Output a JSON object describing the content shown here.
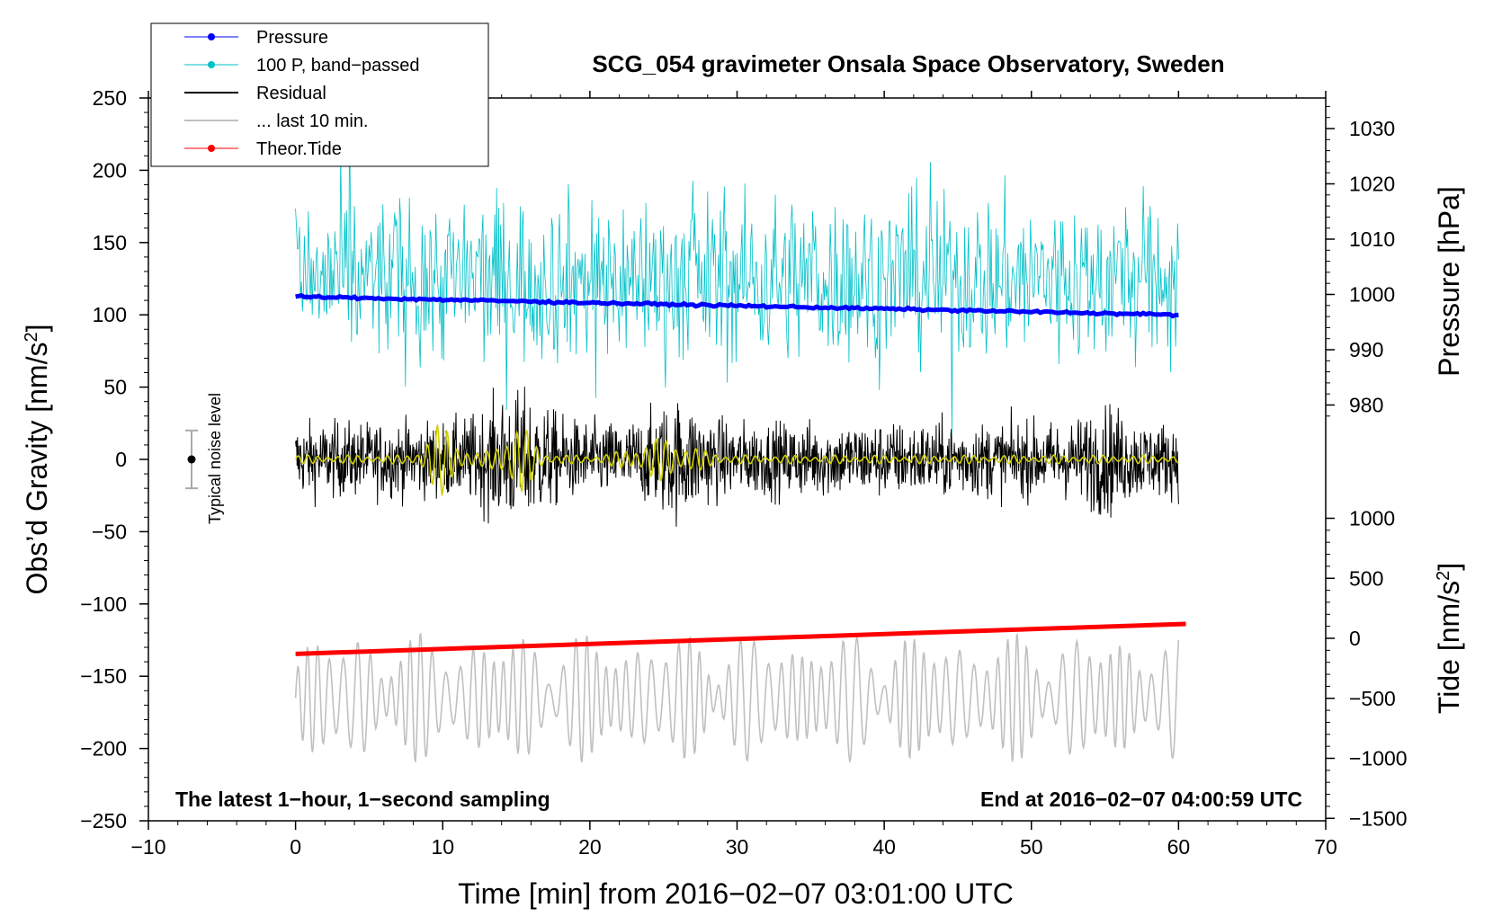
{
  "chart_data": {
    "type": "line",
    "title": "SCG_054 gravimeter Onsala Space Observatory, Sweden",
    "xlabel": "Time [min] from 2016−02−07 03:01:00 UTC",
    "ylabel_left": "Obs’d Gravity [nm/s",
    "ylabel_left_sup": "2",
    "ylabel_left_close": "]",
    "ylabel_right_top": "Pressure [hPa]",
    "ylabel_right_bottom": "Tide [nm/s",
    "ylabel_right_bottom_sup": "2",
    "ylabel_right_bottom_close": "]",
    "xlim": [
      -10,
      70
    ],
    "ylim_left": [
      -250,
      250
    ],
    "x_ticks": [
      "−10",
      "0",
      "10",
      "20",
      "30",
      "40",
      "50",
      "60",
      "70"
    ],
    "y_ticks_left": [
      "250",
      "200",
      "150",
      "100",
      "50",
      "0",
      "−50",
      "−100",
      "−150",
      "−200",
      "−250"
    ],
    "pressure_ticks": [
      "1030",
      "1020",
      "1010",
      "1000",
      "990",
      "980"
    ],
    "tide_ticks": [
      "1000",
      "500",
      "0",
      "−500",
      "−1000",
      "−1500"
    ],
    "annotation_left": "The latest 1−hour, 1−second sampling",
    "annotation_right": "End at 2016−02−07 04:00:59 UTC",
    "noise_label": "Typical noise level",
    "noise_bar": {
      "center": 0,
      "half_range": 20
    },
    "legend": [
      {
        "label": "Pressure",
        "color": "#0000ff",
        "marker": true
      },
      {
        "label": "100 P, band−passed",
        "color": "#00c0c8",
        "marker": true
      },
      {
        "label": "Residual",
        "color": "#000000",
        "marker": false
      },
      {
        "label": "... last 10 min.",
        "color": "#c0c0c0",
        "marker": false
      },
      {
        "label": "Theor.Tide",
        "color": "#ff0000",
        "marker": true
      }
    ],
    "series": [
      {
        "name": "Pressure",
        "color": "#0000ff",
        "axis": "pressure_hPa",
        "x": [
          0,
          60
        ],
        "values": [
          999.6,
          996.3
        ]
      },
      {
        "name": "100 P, band−passed",
        "color": "#00c0c8",
        "axis": "gravity_offset",
        "x_range": [
          0,
          60
        ],
        "baseline": 125,
        "amplitude_approx": 75
      },
      {
        "name": "Residual",
        "color": "#000000",
        "axis": "gravity",
        "x_range": [
          0,
          60
        ],
        "baseline": 0,
        "amplitude_approx": 40
      },
      {
        "name": "Yellow filtered residual",
        "color": "#d0d000",
        "axis": "gravity",
        "x_range": [
          0,
          60
        ],
        "baseline": 0,
        "amplitude_approx": 25
      },
      {
        "name": "... last 10 min.",
        "color": "#c0c0c0",
        "axis": "gravity",
        "x_range": [
          0,
          60
        ],
        "baseline": -165,
        "amplitude_approx": 35
      },
      {
        "name": "Theor.Tide",
        "color": "#ff0000",
        "axis": "tide_nm_s2",
        "x": [
          0,
          60.5
        ],
        "values": [
          -130,
          120
        ]
      }
    ]
  }
}
